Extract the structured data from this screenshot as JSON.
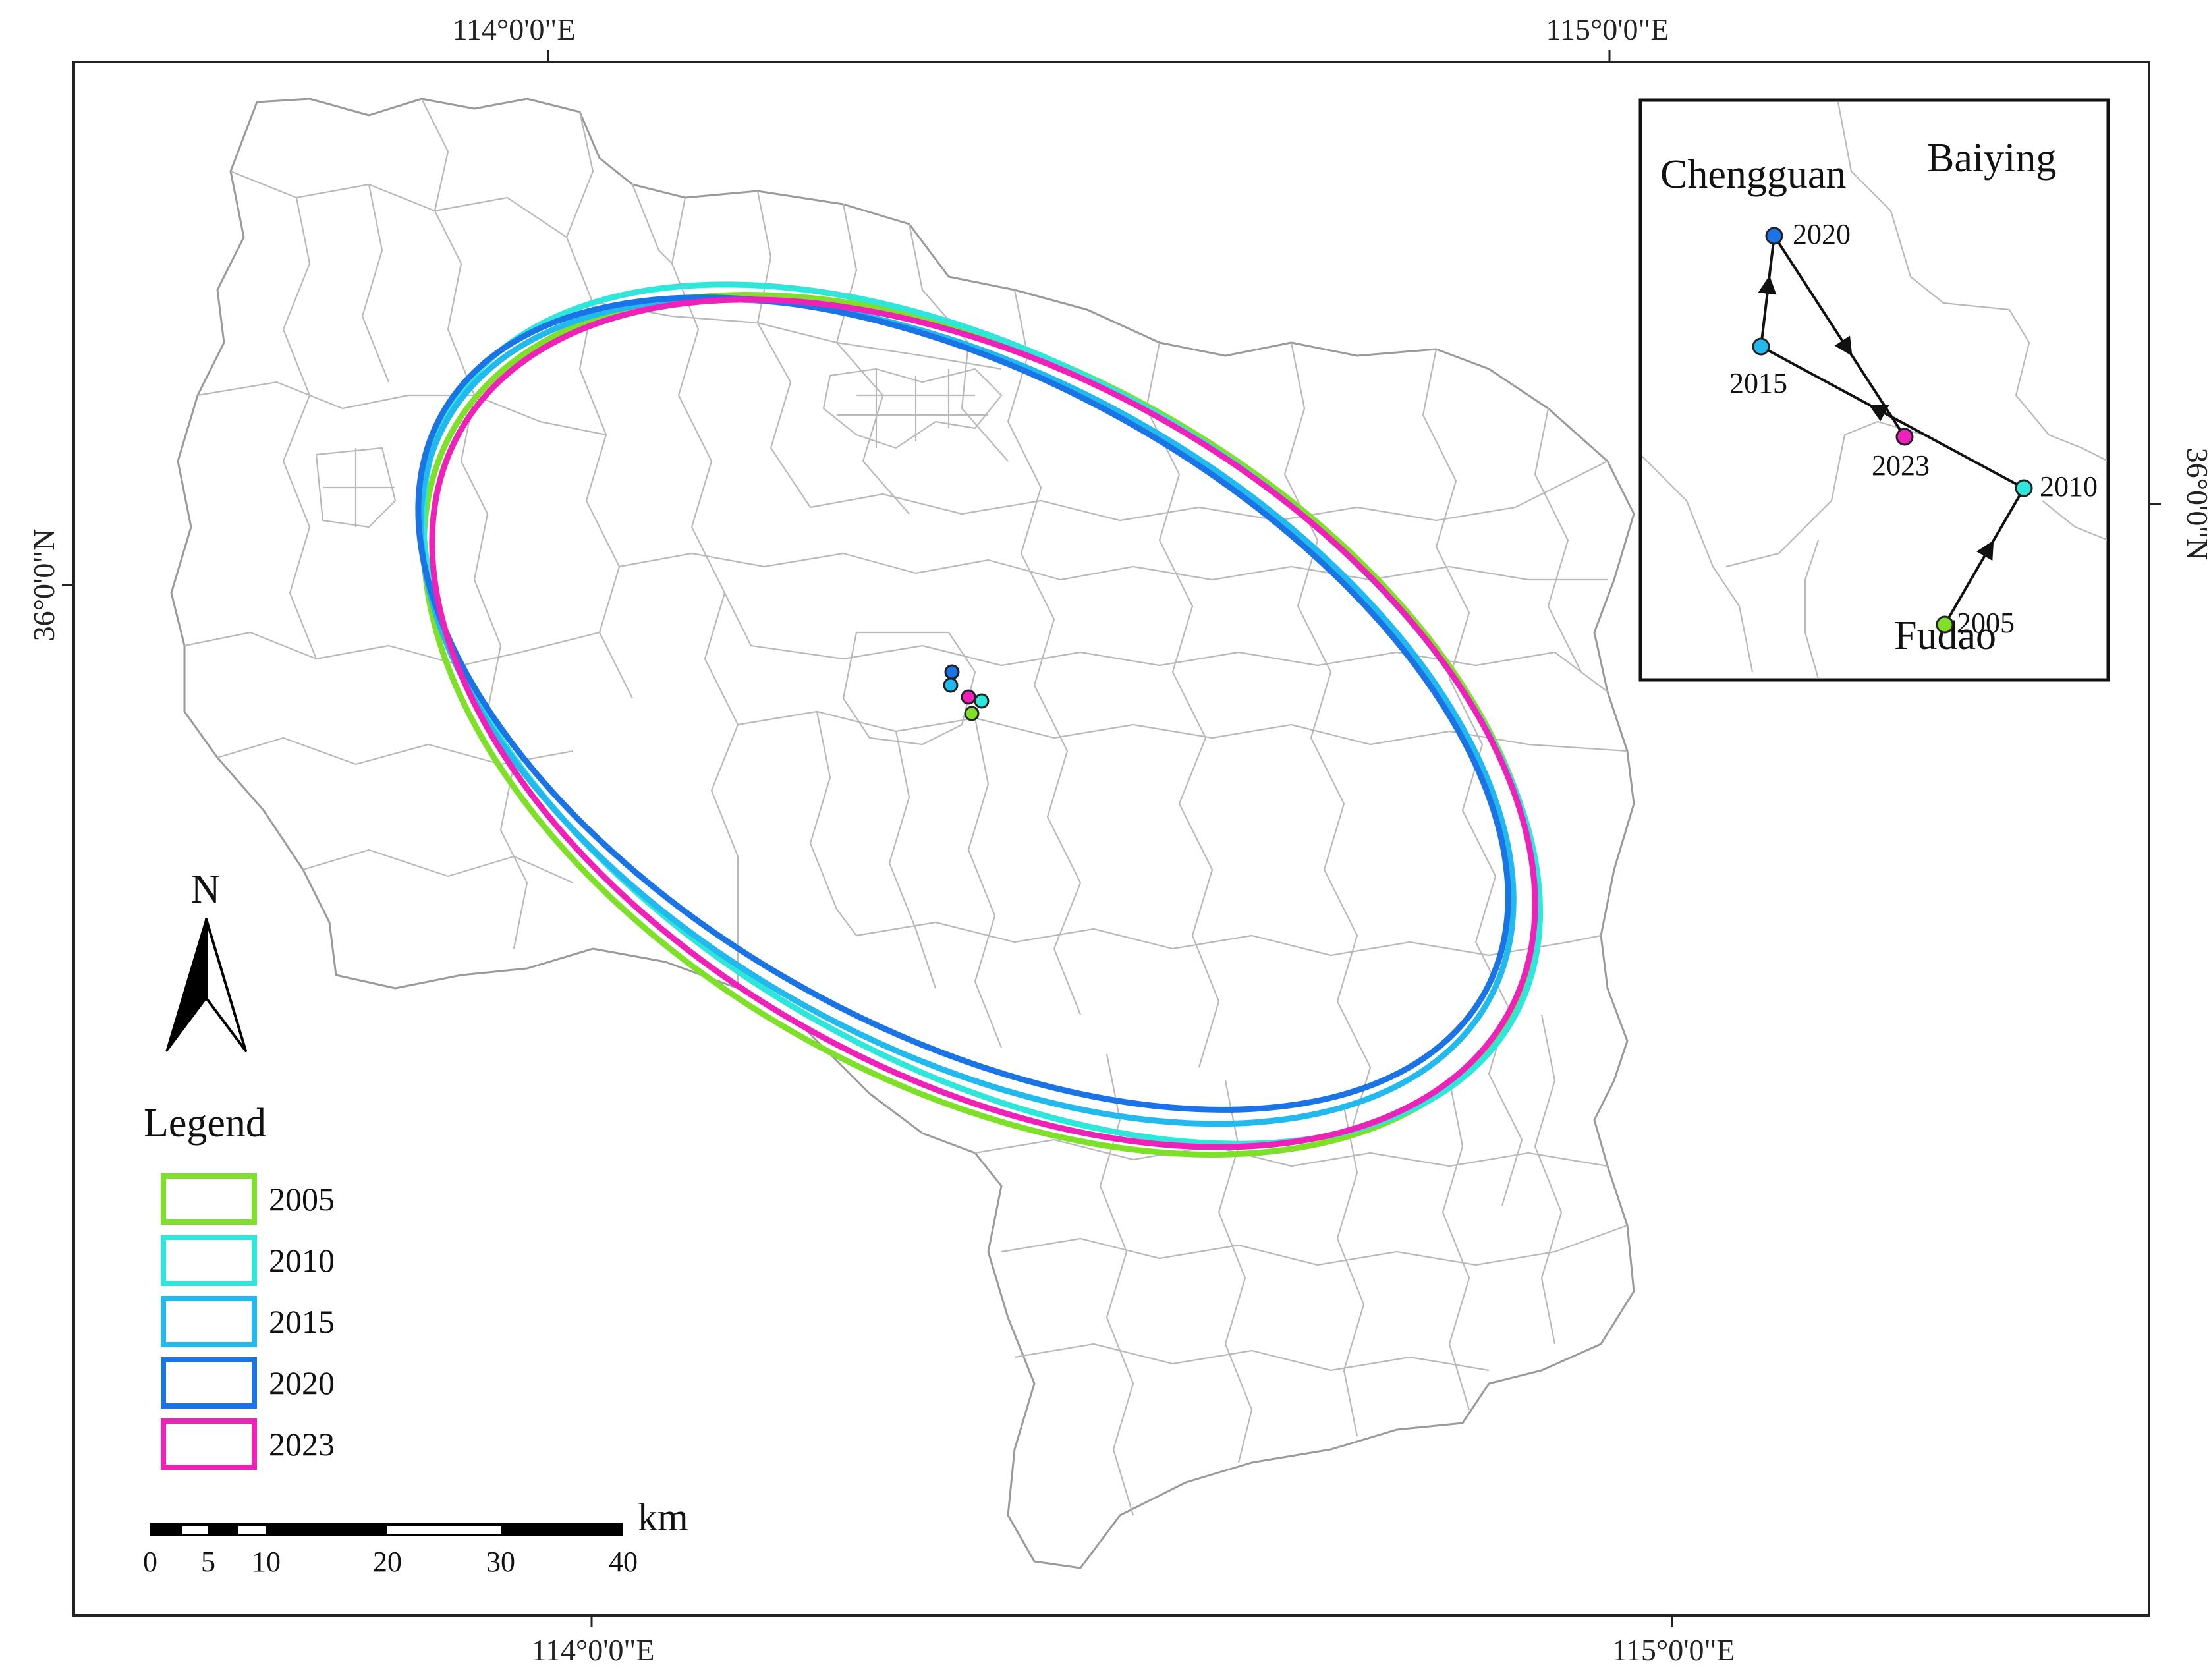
{
  "axis_labels": {
    "lon_left_top": "114°0'0\"E",
    "lon_right_top": "115°0'0\"E",
    "lon_left_bottom": "114°0'0\"E",
    "lon_right_bottom": "115°0'0\"E",
    "lat_left": "36°0'0\"N",
    "lat_right": "36°0'0\"N"
  },
  "north_arrow": {
    "label": "N"
  },
  "legend": {
    "title": "Legend",
    "items": [
      {
        "label": "2005",
        "color": "#7FE02A"
      },
      {
        "label": "2010",
        "color": "#2EE6DA"
      },
      {
        "label": "2015",
        "color": "#22B9EE"
      },
      {
        "label": "2020",
        "color": "#1A74E6"
      },
      {
        "label": "2023",
        "color": "#EE22B8"
      }
    ]
  },
  "scale_bar": {
    "unit": "km",
    "ticks": [
      "0",
      "5",
      "10",
      "20",
      "30",
      "40"
    ]
  },
  "inset": {
    "regions": {
      "chengguan": "Chengguan",
      "baiying": "Baiying",
      "fudao": "Fudao"
    },
    "points": [
      {
        "year": "2005",
        "color": "#7FE02A"
      },
      {
        "year": "2010",
        "color": "#2EE6DA"
      },
      {
        "year": "2015",
        "color": "#22B9EE"
      },
      {
        "year": "2020",
        "color": "#1A74E6"
      },
      {
        "year": "2023",
        "color": "#EE22B8"
      }
    ]
  }
}
